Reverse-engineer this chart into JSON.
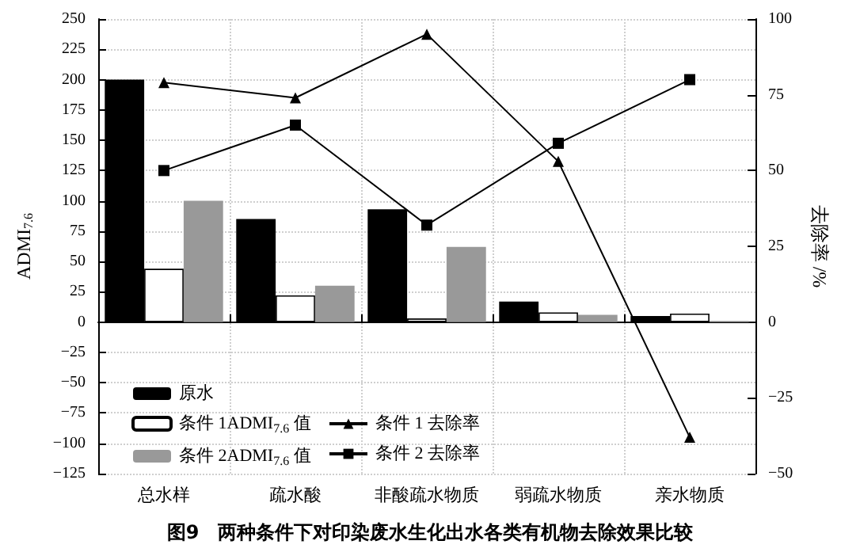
{
  "chart_data": {
    "type": "bar",
    "title": "图9　两种条件下对印染废水生化出水各类有机物去除效果比较",
    "ylabel": "ADMI$_{7.6}$",
    "y2label": "去除率 /%",
    "categories": [
      "总水样",
      "疏水酸",
      "非酸疏水物质",
      "弱疏水物质",
      "亲水物质"
    ],
    "series": [
      {
        "name": "原水",
        "color": "#000000",
        "values": [
          200,
          85,
          93,
          17,
          5
        ]
      },
      {
        "name": "条件 1ADMI$_{7.6}$ 值",
        "color": "#ffffff",
        "values": [
          44,
          22,
          3,
          8,
          7
        ]
      },
      {
        "name": "条件 2ADMI$_{7.6}$ 值",
        "color": "#999999",
        "values": [
          100,
          30,
          62,
          6,
          1
        ]
      },
      {
        "name": "条件 1 去除率",
        "type": "line",
        "axis": "y2",
        "marker": "triangle",
        "color": "#000000",
        "values": [
          79,
          74,
          95,
          53,
          -38
        ]
      },
      {
        "name": "条件 2 去除率",
        "type": "line",
        "axis": "y2",
        "marker": "square",
        "color": "#000000",
        "values": [
          50,
          65,
          32,
          59,
          80
        ]
      }
    ],
    "ylim": [
      -125,
      250
    ],
    "yticks": [
      -125,
      -100,
      -75,
      -50,
      -25,
      0,
      25,
      50,
      75,
      100,
      125,
      150,
      175,
      200,
      225,
      250
    ],
    "y2lim": [
      -50,
      100
    ],
    "y2ticks": [
      -50,
      -25,
      0,
      25,
      50,
      75,
      100
    ],
    "grid": true,
    "legend": "bottom left"
  }
}
